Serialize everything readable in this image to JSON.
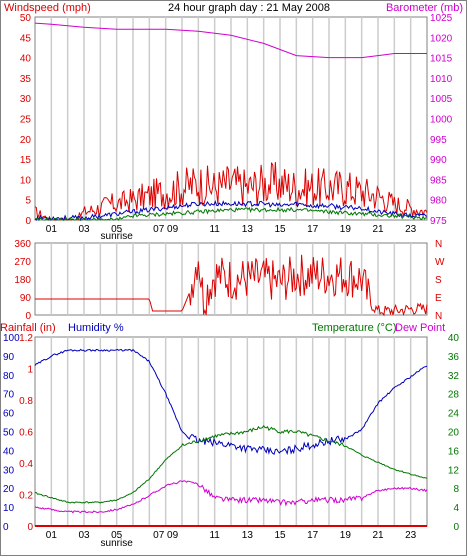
{
  "title": "24 hour graph day : 21 May 2008",
  "sunrise_label": "sunrise",
  "colors": {
    "red": "#dd0000",
    "magenta": "#d000d0",
    "blue": "#0000bb",
    "green": "#007700",
    "grid": "#cccccc",
    "border": "#808080",
    "black": "#000000"
  },
  "chart_data": [
    {
      "type": "line",
      "title": "24 hour graph day : 21 May 2008",
      "left_axis_label": "Windspeed (mph)",
      "right_axis_label": "Barometer (mb)",
      "x_range": [
        0,
        24
      ],
      "x_tick_labels": [
        "01",
        "03",
        "05",
        "07 09",
        "11",
        "13",
        "15",
        "17",
        "19",
        "21",
        "23"
      ],
      "x_tick_positions": [
        1,
        3,
        5,
        8,
        11,
        13,
        15,
        17,
        19,
        21,
        23
      ],
      "y_left": {
        "min": 0,
        "max": 50,
        "ticks": [
          0,
          5,
          10,
          15,
          20,
          25,
          30,
          35,
          40,
          45,
          50
        ]
      },
      "y_right": {
        "min": 975,
        "max": 1025,
        "ticks": [
          975,
          980,
          985,
          990,
          995,
          1000,
          1005,
          1010,
          1015,
          1020,
          1025
        ]
      },
      "grid": true,
      "series": [
        {
          "axis": "right",
          "color": "#d000d0",
          "points": [
            [
              0,
              1023.5
            ],
            [
              1,
              1023.2
            ],
            [
              3,
              1022.5
            ],
            [
              5,
              1022
            ],
            [
              8,
              1022
            ],
            [
              10,
              1021.5
            ],
            [
              12,
              1020.5
            ],
            [
              14,
              1018.5
            ],
            [
              16,
              1015.5
            ],
            [
              18,
              1015
            ],
            [
              20,
              1015
            ],
            [
              21,
              1015.5
            ],
            [
              22,
              1016
            ],
            [
              24,
              1016
            ]
          ]
        },
        {
          "axis": "left",
          "color": "#dd0000",
          "points": [
            [
              0,
              2
            ],
            [
              1,
              0
            ],
            [
              2.5,
              0
            ],
            [
              3,
              2
            ],
            [
              4,
              3
            ],
            [
              4.5,
              4
            ],
            [
              5,
              4
            ],
            [
              6,
              5
            ],
            [
              7,
              6
            ],
            [
              8,
              7
            ],
            [
              9,
              8
            ],
            [
              10,
              9
            ],
            [
              11,
              8
            ],
            [
              12,
              9
            ],
            [
              13,
              8
            ],
            [
              14,
              9
            ],
            [
              15,
              9
            ],
            [
              16,
              8
            ],
            [
              17,
              8
            ],
            [
              18,
              8
            ],
            [
              19,
              8
            ],
            [
              20,
              7
            ],
            [
              21,
              6
            ],
            [
              22,
              4
            ],
            [
              23,
              3
            ],
            [
              24,
              2
            ]
          ]
        },
        {
          "axis": "left",
          "color": "#0000bb",
          "points": [
            [
              0,
              0.5
            ],
            [
              3,
              0.5
            ],
            [
              4,
              1
            ],
            [
              5,
              1.5
            ],
            [
              6,
              2
            ],
            [
              7,
              2.5
            ],
            [
              8,
              3
            ],
            [
              9,
              3.5
            ],
            [
              10,
              4
            ],
            [
              11,
              4
            ],
            [
              12,
              4
            ],
            [
              13,
              4
            ],
            [
              14,
              4
            ],
            [
              15,
              3.5
            ],
            [
              16,
              4
            ],
            [
              17,
              3.5
            ],
            [
              18,
              3.5
            ],
            [
              19,
              3
            ],
            [
              20,
              3
            ],
            [
              21,
              2
            ],
            [
              22,
              1.5
            ],
            [
              23,
              1
            ],
            [
              24,
              1
            ]
          ]
        },
        {
          "axis": "left",
          "color": "#007700",
          "points": [
            [
              0,
              0
            ],
            [
              5,
              0
            ],
            [
              6,
              1
            ],
            [
              8,
              1.5
            ],
            [
              10,
              2
            ],
            [
              12,
              2.5
            ],
            [
              14,
              2.5
            ],
            [
              16,
              2.5
            ],
            [
              18,
              2
            ],
            [
              20,
              1.5
            ],
            [
              22,
              1
            ],
            [
              24,
              0.5
            ]
          ]
        }
      ]
    },
    {
      "type": "line",
      "title": "",
      "left_axis_label": "",
      "right_axis_label": "",
      "x_range": [
        0,
        24
      ],
      "y_left": {
        "min": 0,
        "max": 360,
        "ticks": [
          0,
          90,
          180,
          270,
          360
        ]
      },
      "right_labels": [
        "N",
        "W",
        "S",
        "E",
        "N"
      ],
      "grid": true,
      "series": [
        {
          "axis": "left",
          "color": "#dd0000",
          "points": [
            [
              0,
              80
            ],
            [
              7,
              80
            ],
            [
              7.2,
              20
            ],
            [
              9,
              20
            ],
            [
              9.5,
              120
            ],
            [
              10,
              300
            ],
            [
              10.3,
              80
            ],
            [
              11,
              200
            ],
            [
              12,
              180
            ],
            [
              13,
              180
            ],
            [
              14,
              180
            ],
            [
              15,
              160
            ],
            [
              16,
              200
            ],
            [
              17,
              200
            ],
            [
              18,
              200
            ],
            [
              19,
              200
            ],
            [
              20,
              180
            ],
            [
              20.5,
              60
            ],
            [
              21,
              20
            ],
            [
              22,
              20
            ],
            [
              23,
              30
            ],
            [
              24,
              30
            ]
          ]
        }
      ]
    },
    {
      "type": "line",
      "title": "",
      "left_axis_label": "Rainfall (in)",
      "left_axis_label_2": "Humidity %",
      "right_axis_label": "Temperature (°C)",
      "right_axis_label_2": "Dew Point",
      "x_range": [
        0,
        24
      ],
      "x_tick_labels": [
        "01",
        "03",
        "05",
        "07 09",
        "11",
        "13",
        "15",
        "17",
        "19",
        "21",
        "23"
      ],
      "x_tick_positions": [
        1,
        3,
        5,
        8,
        11,
        13,
        15,
        17,
        19,
        21,
        23
      ],
      "y_humidity": {
        "min": 0,
        "max": 100,
        "ticks": [
          0,
          10,
          20,
          30,
          40,
          50,
          60,
          70,
          80,
          90,
          100
        ]
      },
      "y_rain": {
        "min": 0,
        "max": 1.2,
        "ticks": [
          0,
          0.2,
          0.4,
          0.6,
          0.8,
          1,
          1.2
        ]
      },
      "y_temp": {
        "min": 0,
        "max": 40,
        "ticks": [
          0,
          4,
          8,
          12,
          16,
          20,
          24,
          28,
          32,
          36,
          40
        ]
      },
      "grid": true,
      "series": [
        {
          "name": "Humidity %",
          "axis": "humidity",
          "color": "#0000bb",
          "points": [
            [
              0,
              85
            ],
            [
              1,
              90
            ],
            [
              2,
              93
            ],
            [
              3,
              93
            ],
            [
              4,
              93
            ],
            [
              5,
              93
            ],
            [
              6,
              93
            ],
            [
              7,
              87
            ],
            [
              8,
              70
            ],
            [
              9,
              50
            ],
            [
              10,
              45
            ],
            [
              11,
              44
            ],
            [
              12,
              43
            ],
            [
              13,
              41
            ],
            [
              14,
              40
            ],
            [
              15,
              39
            ],
            [
              16,
              41
            ],
            [
              17,
              43
            ],
            [
              18,
              45
            ],
            [
              19,
              46
            ],
            [
              20,
              51
            ],
            [
              21,
              65
            ],
            [
              22,
              73
            ],
            [
              23,
              79
            ],
            [
              24,
              85
            ]
          ]
        },
        {
          "name": "Temperature",
          "axis": "temp",
          "color": "#007700",
          "points": [
            [
              0,
              7
            ],
            [
              1,
              6
            ],
            [
              2,
              5
            ],
            [
              3,
              5
            ],
            [
              4,
              5
            ],
            [
              5,
              5.5
            ],
            [
              6,
              7
            ],
            [
              7,
              10
            ],
            [
              8,
              14
            ],
            [
              9,
              17
            ],
            [
              10,
              18
            ],
            [
              11,
              19
            ],
            [
              12,
              19.5
            ],
            [
              13,
              20
            ],
            [
              14,
              21
            ],
            [
              15,
              20
            ],
            [
              16,
              20
            ],
            [
              17,
              19
            ],
            [
              18,
              18
            ],
            [
              19,
              17
            ],
            [
              20,
              15
            ],
            [
              21,
              13.5
            ],
            [
              22,
              12
            ],
            [
              23,
              11
            ],
            [
              24,
              10
            ]
          ]
        },
        {
          "name": "Dew Point",
          "axis": "temp",
          "color": "#d000d0",
          "points": [
            [
              0,
              4
            ],
            [
              1,
              3.5
            ],
            [
              2,
              3
            ],
            [
              3,
              3
            ],
            [
              4,
              3
            ],
            [
              5,
              3.5
            ],
            [
              6,
              4.5
            ],
            [
              7,
              6.5
            ],
            [
              8,
              8.5
            ],
            [
              9,
              9.5
            ],
            [
              10,
              9
            ],
            [
              11,
              6
            ],
            [
              12,
              5.5
            ],
            [
              13,
              5.5
            ],
            [
              14,
              5.5
            ],
            [
              15,
              5
            ],
            [
              16,
              5
            ],
            [
              17,
              5.5
            ],
            [
              18,
              5.5
            ],
            [
              19,
              5.5
            ],
            [
              20,
              6
            ],
            [
              21,
              7.5
            ],
            [
              22,
              8
            ],
            [
              23,
              8
            ],
            [
              24,
              7.5
            ]
          ]
        },
        {
          "name": "Rainfall (in)",
          "axis": "rain",
          "color": "#dd0000",
          "points": [
            [
              0,
              0
            ],
            [
              24,
              0
            ]
          ]
        }
      ]
    }
  ]
}
